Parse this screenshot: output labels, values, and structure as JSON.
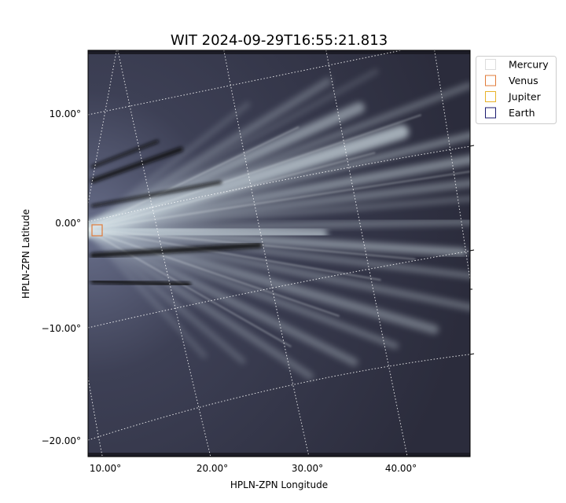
{
  "chart_data": {
    "type": "image",
    "title": "WIT 2024-09-29T16:55:21.813",
    "xlabel": "HPLN-ZPN Longitude",
    "ylabel": "HPLN-ZPN Latitude",
    "x_ticks": [
      "10.00°",
      "20.00°",
      "30.00°",
      "40.00°"
    ],
    "y_ticks": [
      "10.00°",
      "0.00°",
      "−10.00°",
      "−20.00°"
    ],
    "colormap": "bone",
    "grid": true,
    "legend_position": "outside-top-right",
    "legend": [
      {
        "name": "Mercury",
        "color": "#dddddd"
      },
      {
        "name": "Venus",
        "color": "#e07b39"
      },
      {
        "name": "Jupiter",
        "color": "#e8b32a"
      },
      {
        "name": "Earth",
        "color": "#1a1a6e"
      }
    ],
    "markers": [
      {
        "body": "Venus",
        "longitude": 9.5,
        "latitude": -0.4
      }
    ]
  }
}
